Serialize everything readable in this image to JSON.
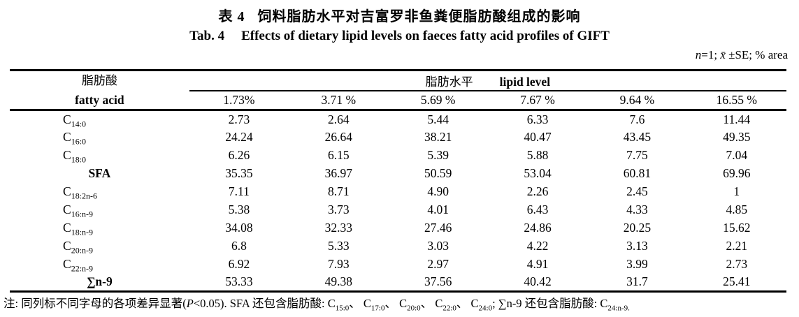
{
  "page": {
    "background": "#ffffff",
    "text_color": "#000000"
  },
  "titles": {
    "zh_label": "表 4",
    "zh_text": "饲料脂肪水平对吉富罗非鱼粪便脂肪酸组成的影响",
    "en_label": "Tab. 4",
    "en_text": "Effects of dietary lipid levels on faeces fatty acid profiles of GIFT"
  },
  "stats_note": {
    "segments": [
      {
        "t": "n",
        "i": true
      },
      {
        "t": "=1; "
      },
      {
        "t": "x̄",
        "i": true
      },
      {
        "t": " ±SE; % area"
      }
    ]
  },
  "table": {
    "header": {
      "col1_zh": "脂肪酸",
      "col1_en": "fatty acid",
      "spanner_zh": "脂肪水平",
      "spanner_en": "lipid level",
      "lipid_levels": [
        "1.73%",
        "3.71 %",
        "5.69 %",
        "7.67 %",
        "9.64 %",
        "16.55 %"
      ]
    },
    "rows": [
      {
        "base": "C",
        "sub": "14:0",
        "values": [
          "2.73",
          "2.64",
          "5.44",
          "6.33",
          "7.6",
          "11.44"
        ]
      },
      {
        "base": "C",
        "sub": "16:0",
        "values": [
          "24.24",
          "26.64",
          "38.21",
          "40.47",
          "43.45",
          "49.35"
        ]
      },
      {
        "base": "C",
        "sub": "18:0",
        "values": [
          "6.26",
          "6.15",
          "5.39",
          "5.88",
          "7.75",
          "7.04"
        ]
      },
      {
        "base": "SFA",
        "sub": "",
        "values": [
          "35.35",
          "36.97",
          "50.59",
          "53.04",
          "60.81",
          "69.96"
        ]
      },
      {
        "base": "C",
        "sub": "18:2n-6",
        "values": [
          "7.11",
          "8.71",
          "4.90",
          "2.26",
          "2.45",
          "1"
        ]
      },
      {
        "base": "C",
        "sub": "16:n-9",
        "values": [
          "5.38",
          "3.73",
          "4.01",
          "6.43",
          "4.33",
          "4.85"
        ]
      },
      {
        "base": "C",
        "sub": "18:n-9",
        "values": [
          "34.08",
          "32.33",
          "27.46",
          "24.86",
          "20.25",
          "15.62"
        ]
      },
      {
        "base": "C",
        "sub": "20:n-9",
        "values": [
          "6.8",
          "5.33",
          "3.03",
          "4.22",
          "3.13",
          "2.21"
        ]
      },
      {
        "base": "C",
        "sub": "22:n-9",
        "values": [
          "6.92",
          "7.93",
          "2.97",
          "4.91",
          "3.99",
          "2.73"
        ]
      },
      {
        "base": "∑n-9",
        "sub": "",
        "values": [
          "53.33",
          "49.38",
          "37.56",
          "40.42",
          "31.7",
          "25.41"
        ]
      }
    ]
  },
  "footnote": {
    "segments": [
      {
        "t": "注: 同列标不同字母的各项差异显著("
      },
      {
        "t": "P",
        "i": true
      },
      {
        "t": "<0.05). SFA 还包含脂肪酸: C"
      },
      {
        "t": "15:0",
        "sub": true
      },
      {
        "t": "、 C"
      },
      {
        "t": "17:0",
        "sub": true
      },
      {
        "t": "、 C"
      },
      {
        "t": "20:0",
        "sub": true
      },
      {
        "t": "、 C"
      },
      {
        "t": "22:0",
        "sub": true
      },
      {
        "t": "、 C"
      },
      {
        "t": "24:0",
        "sub": true
      },
      {
        "t": "; ∑n-9 还包含脂肪酸: C"
      },
      {
        "t": "24:n-9.",
        "sub": true
      }
    ]
  }
}
